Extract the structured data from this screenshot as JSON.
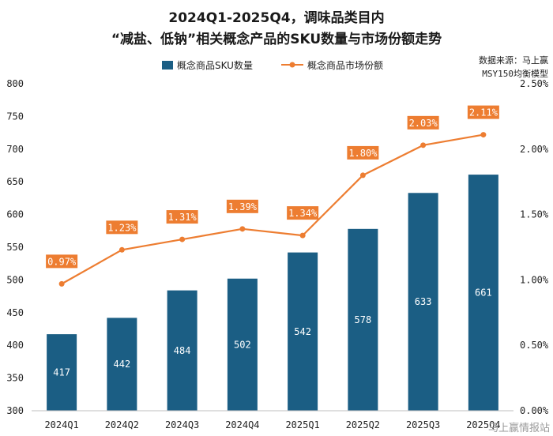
{
  "title_line1": "2024Q1-2025Q4，调味品类目内",
  "title_line2": "“减盐、低钠”相关概念产品的SKU数量与市场份额走势",
  "source_line1": "数据来源：马上赢",
  "source_line2": "MSY150均衡模型",
  "watermark": "马上赢情报站",
  "colors": {
    "bar": "#1b5e84",
    "line": "#ed7d31"
  },
  "chart_data": {
    "type": "bar+line",
    "categories": [
      "2024Q1",
      "2024Q2",
      "2024Q3",
      "2024Q4",
      "2025Q1",
      "2025Q2",
      "2025Q3",
      "2025Q4"
    ],
    "series": [
      {
        "name": "概念商品SKU数量",
        "type": "bar",
        "axis": "left",
        "values": [
          417,
          442,
          484,
          502,
          542,
          578,
          633,
          661
        ]
      },
      {
        "name": "概念商品市场份额",
        "type": "line",
        "axis": "right",
        "values": [
          0.97,
          1.23,
          1.31,
          1.39,
          1.34,
          1.8,
          2.03,
          2.11
        ],
        "labels": [
          "0.97%",
          "1.23%",
          "1.31%",
          "1.39%",
          "1.34%",
          "1.80%",
          "2.03%",
          "2.11%"
        ]
      }
    ],
    "y_left": {
      "range": [
        300,
        800
      ],
      "ticks": [
        "300",
        "350",
        "400",
        "450",
        "500",
        "550",
        "600",
        "650",
        "700",
        "750",
        "800"
      ]
    },
    "y_right": {
      "range": [
        0,
        2.5
      ],
      "ticks": [
        "0.00%",
        "0.50%",
        "1.00%",
        "1.50%",
        "2.00%",
        "2.50%"
      ]
    },
    "grid": false,
    "legend": "top-center"
  }
}
